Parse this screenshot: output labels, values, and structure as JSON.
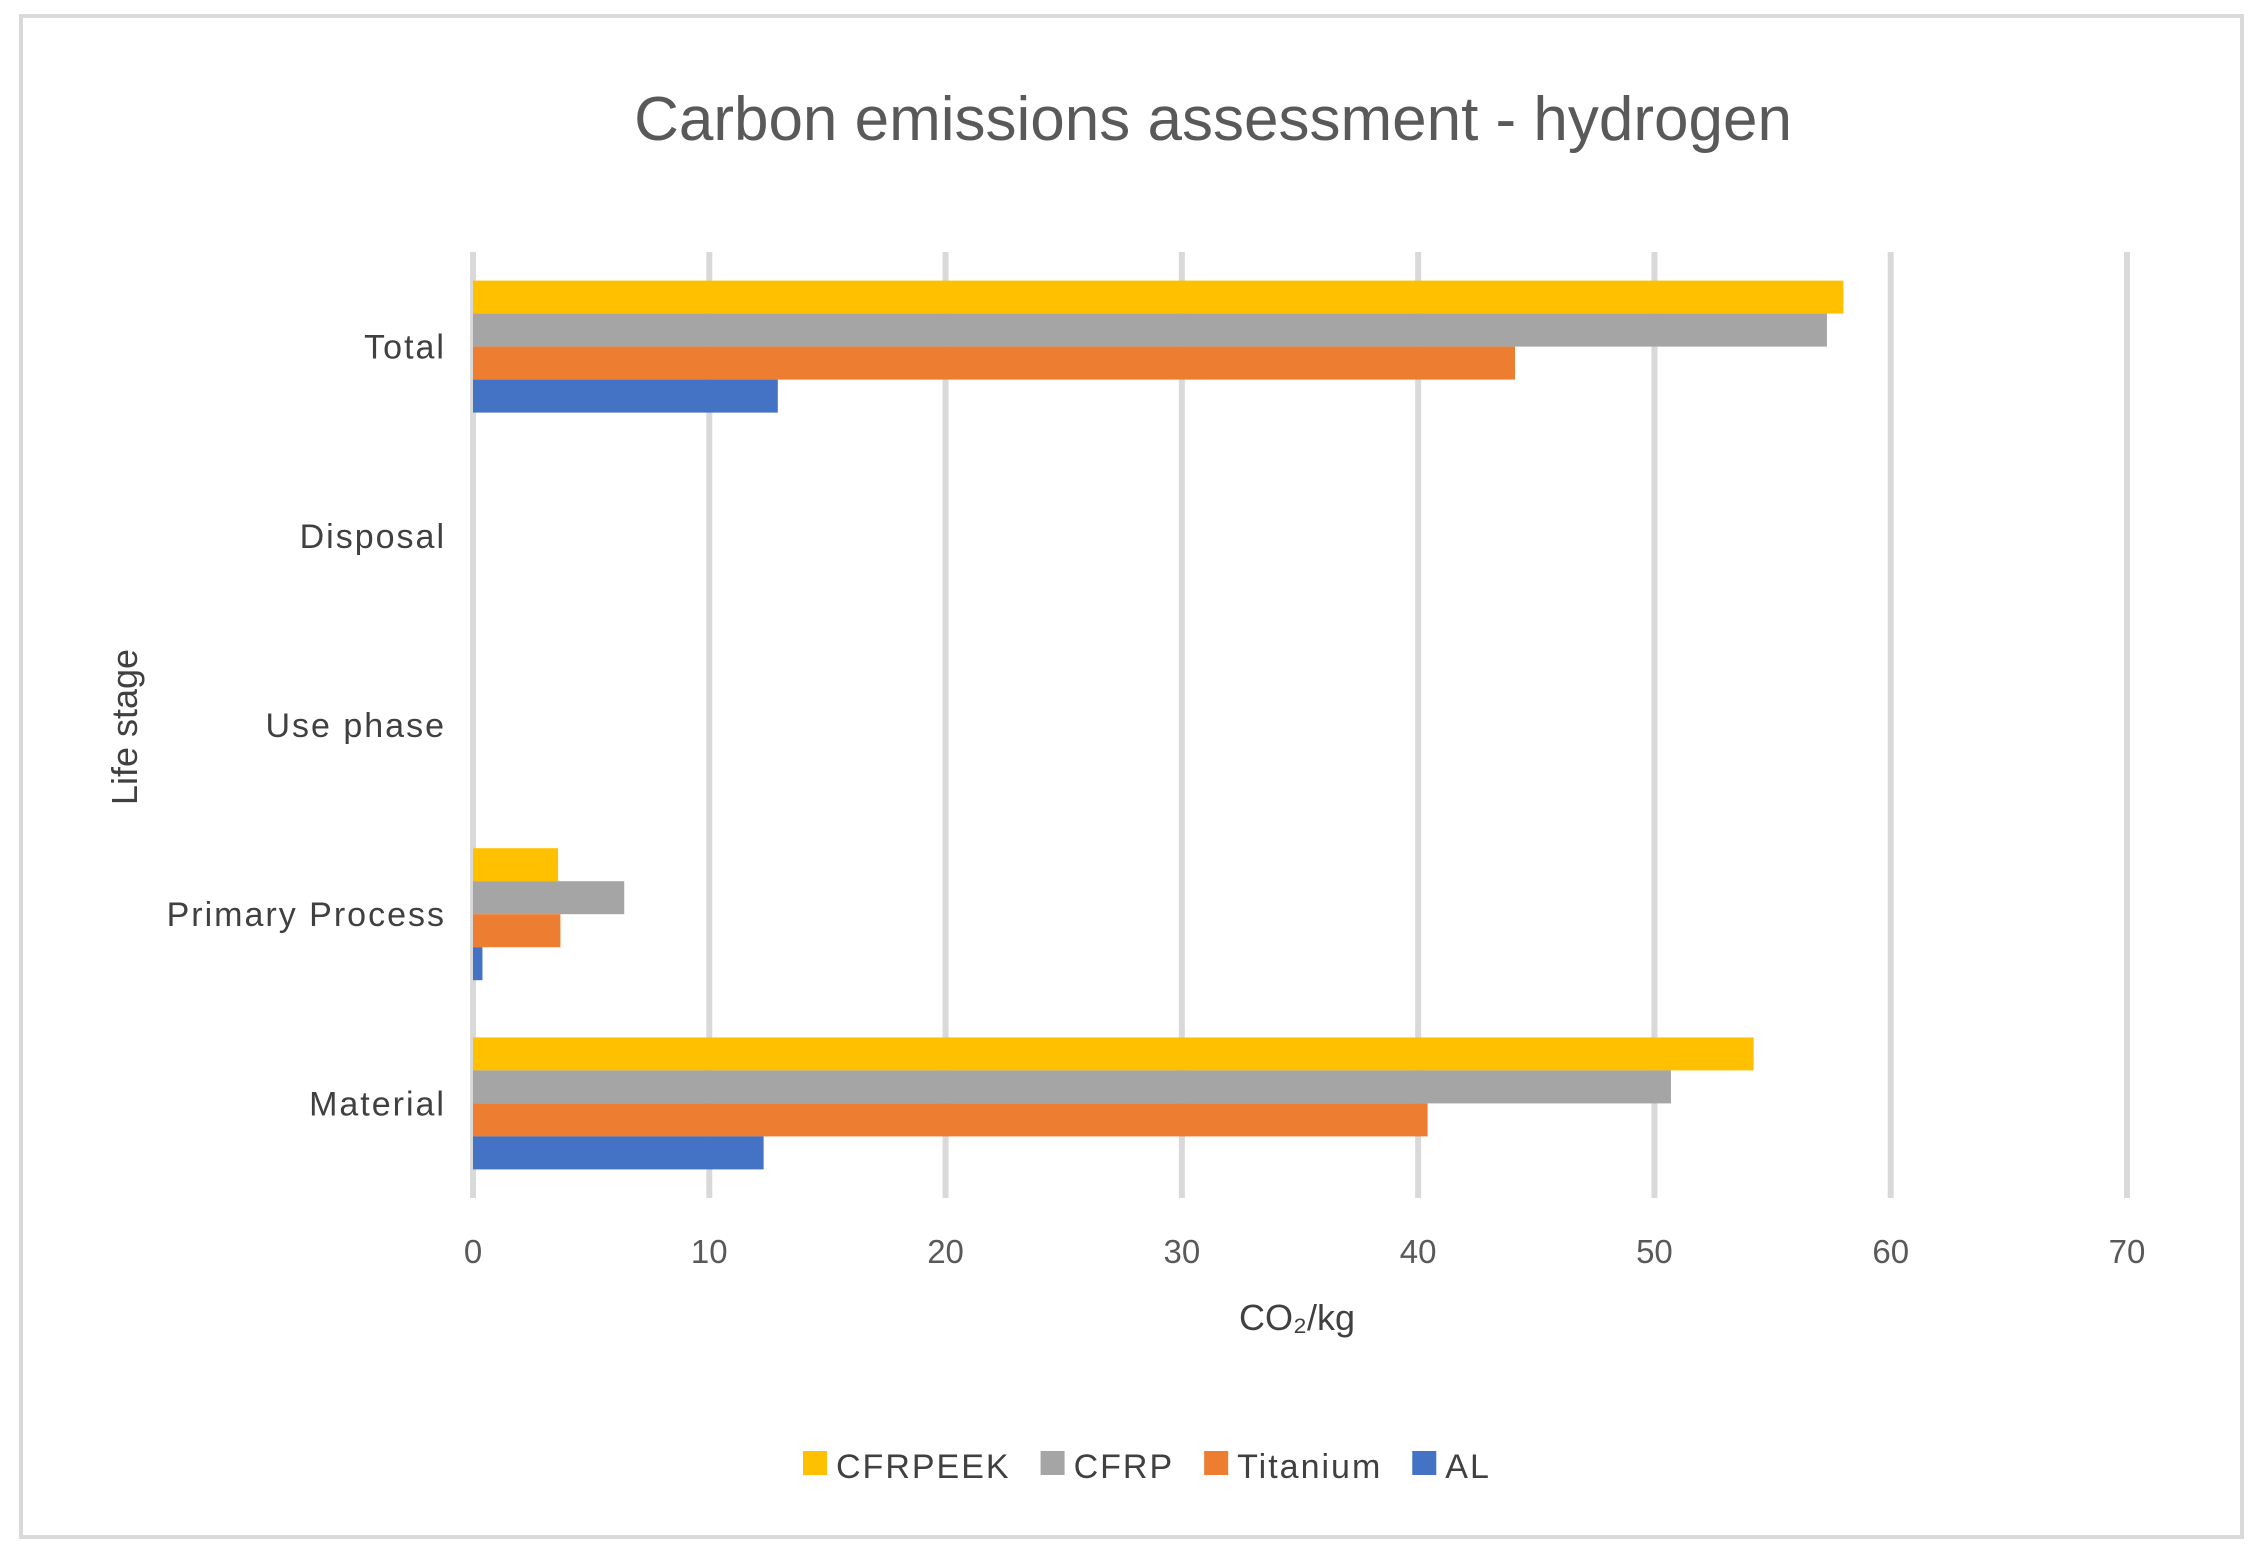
{
  "chart_data": {
    "type": "bar",
    "orientation": "horizontal",
    "title": "Carbon emissions assessment  -  hydrogen",
    "xlabel": "CO₂/kg",
    "ylabel": "Life stage",
    "xlim": [
      0,
      70
    ],
    "xticks": [
      0,
      10,
      20,
      30,
      40,
      50,
      60,
      70
    ],
    "grid": true,
    "legend_position": "bottom",
    "categories": [
      "Material",
      "Primary Process",
      "Use phase",
      "Disposal",
      "Total"
    ],
    "series": [
      {
        "name": "CFRPEEK",
        "color": "#ffc000",
        "values": [
          54.2,
          3.6,
          0,
          0,
          58.0
        ]
      },
      {
        "name": "CFRP",
        "color": "#a5a5a5",
        "values": [
          50.7,
          6.4,
          0,
          0,
          57.3
        ]
      },
      {
        "name": "Titanium",
        "color": "#ed7d31",
        "values": [
          40.4,
          3.7,
          0,
          0,
          44.1
        ]
      },
      {
        "name": "AL",
        "color": "#4472c4",
        "values": [
          12.3,
          0.4,
          0,
          0,
          12.9
        ]
      }
    ]
  }
}
